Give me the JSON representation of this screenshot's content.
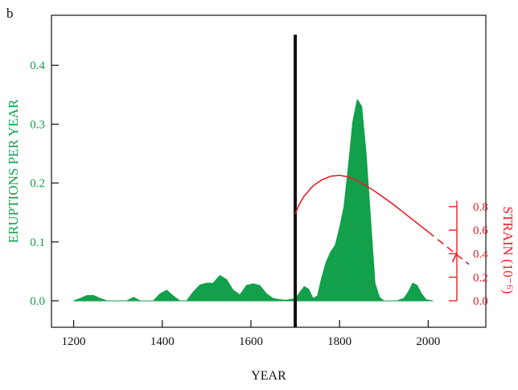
{
  "panel_label": "b",
  "chart_data": {
    "type": "area",
    "xlabel": "YEAR",
    "xlim": [
      1150,
      2130
    ],
    "x_ticks": [
      1200,
      1400,
      1600,
      1800,
      2000
    ],
    "x_tick_labels": [
      "1200",
      "1400",
      "1600",
      "1800",
      "2000"
    ],
    "left_axis": {
      "label": "ERUPTIONS PER YEAR",
      "ylim": [
        -0.045,
        0.485
      ],
      "ticks": [
        0.0,
        0.1,
        0.2,
        0.3,
        0.4
      ],
      "tick_labels": [
        "0.0",
        "0.1",
        "0.2",
        "0.3",
        "0.4"
      ],
      "color": "#12a04a"
    },
    "right_axis": {
      "label": "STRAIN (10⁻⁶)",
      "ticks": [
        0.0,
        0.2,
        0.4,
        0.6,
        0.8
      ],
      "tick_labels": [
        "0.0",
        "0.2",
        "0.4",
        "0.6",
        "0.8"
      ],
      "color": "#e8202a",
      "zero_at_left_value": 0.0,
      "unit_per_left_value": 0.2
    },
    "vertical_marker": {
      "x": 1700,
      "y_top": 0.452,
      "color": "#111111"
    },
    "series": [
      {
        "type": "area",
        "color": "#12a04a",
        "x": [
          1200,
          1215,
          1230,
          1245,
          1260,
          1275,
          1290,
          1305,
          1320,
          1335,
          1350,
          1365,
          1380,
          1395,
          1410,
          1425,
          1440,
          1455,
          1470,
          1485,
          1500,
          1515,
          1530,
          1545,
          1560,
          1575,
          1590,
          1605,
          1620,
          1635,
          1650,
          1665,
          1680,
          1695,
          1700,
          1710,
          1720,
          1730,
          1740,
          1750,
          1760,
          1770,
          1780,
          1790,
          1800,
          1810,
          1820,
          1830,
          1840,
          1850,
          1860,
          1870,
          1880,
          1890,
          1900,
          1905,
          1915,
          1930,
          1945,
          1955,
          1965,
          1975,
          1985,
          1995,
          2010
        ],
        "values": [
          0.0,
          0.004,
          0.009,
          0.009,
          0.004,
          0.0,
          0.0,
          0.0,
          0.0,
          0.006,
          0.0,
          0.0,
          0.0,
          0.012,
          0.018,
          0.008,
          0.0,
          0.0,
          0.015,
          0.027,
          0.03,
          0.03,
          0.043,
          0.036,
          0.018,
          0.01,
          0.026,
          0.029,
          0.026,
          0.012,
          0.004,
          0.002,
          0.001,
          0.003,
          0.003,
          0.014,
          0.024,
          0.02,
          0.004,
          0.008,
          0.04,
          0.066,
          0.083,
          0.094,
          0.124,
          0.16,
          0.23,
          0.305,
          0.342,
          0.33,
          0.25,
          0.14,
          0.03,
          0.006,
          0.0,
          0.0,
          0.0,
          0.0,
          0.004,
          0.015,
          0.03,
          0.026,
          0.012,
          0.002,
          0.0
        ]
      },
      {
        "type": "line",
        "axis": "right",
        "color": "#e8202a",
        "x": [
          1700,
          1710,
          1720,
          1740,
          1760,
          1780,
          1800,
          1820,
          1840,
          1860,
          1880,
          1900,
          1920,
          1940,
          1960,
          1980,
          2000
        ],
        "values": [
          0.74,
          0.826,
          0.889,
          0.976,
          1.027,
          1.058,
          1.065,
          1.052,
          1.019,
          0.977,
          0.929,
          0.876,
          0.822,
          0.763,
          0.704,
          0.645,
          0.585
        ],
        "dashed_x": [
          2000,
          2013,
          2026,
          2039,
          2052,
          2065,
          2078,
          2092
        ],
        "dashed_values": [
          0.585,
          0.546,
          0.507,
          0.468,
          0.429,
          0.39,
          0.351,
          0.31
        ],
        "end_marker": {
          "x": 2060,
          "value": 0.37
        }
      }
    ]
  }
}
